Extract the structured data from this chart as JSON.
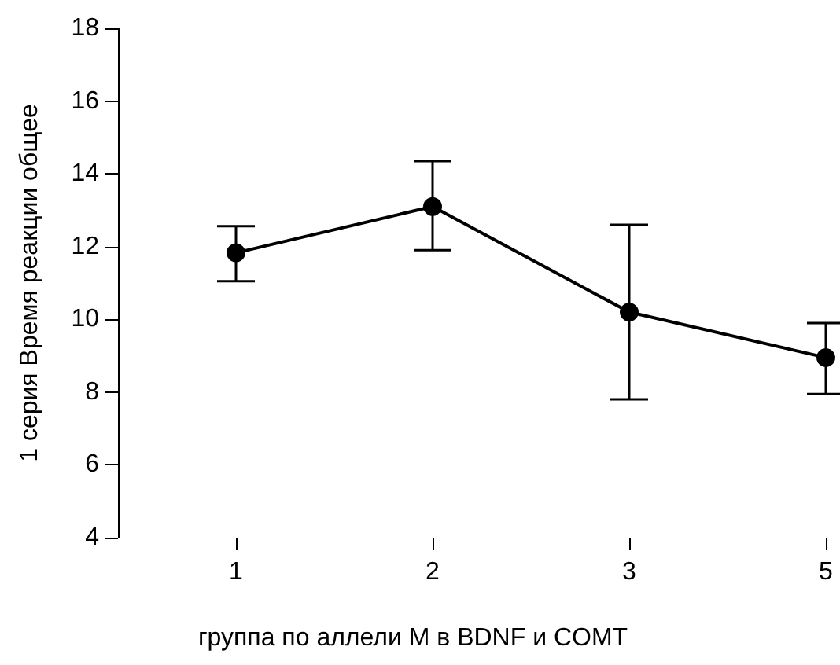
{
  "chart_data": {
    "type": "line",
    "xlabel": "группа по аллели M в BDNF и COMT",
    "ylabel": "1 серия Время реакции общее",
    "categories": [
      "1",
      "2",
      "3",
      "5"
    ],
    "series": [
      {
        "color": "#000000",
        "values": [
          11.83,
          13.1,
          10.2,
          8.95
        ],
        "errors": [
          [
            11.05,
            12.56
          ],
          [
            11.9,
            14.35
          ],
          [
            7.8,
            12.6
          ],
          [
            7.95,
            9.9
          ]
        ]
      }
    ],
    "ylim": [
      4,
      18
    ],
    "yticks": [
      4,
      6,
      8,
      10,
      12,
      14,
      16,
      18
    ],
    "marker": "circle",
    "line_style": "solid"
  }
}
